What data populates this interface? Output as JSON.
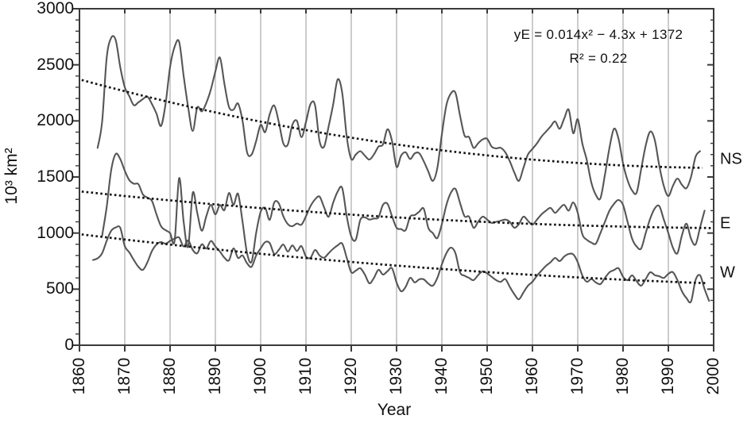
{
  "chart_data": {
    "type": "line",
    "title": "",
    "xlabel": "Year",
    "ylabel": "10³ km²",
    "xlim": [
      1860,
      2000
    ],
    "ylim": [
      0,
      3000
    ],
    "grid": "vertical-decade-gridlines",
    "x_ticks": [
      1860,
      1870,
      1880,
      1890,
      1900,
      1910,
      1920,
      1930,
      1940,
      1950,
      1960,
      1970,
      1980,
      1990,
      2000
    ],
    "y_ticks": [
      0,
      500,
      1000,
      1500,
      2000,
      2500,
      3000
    ],
    "y_minor_step": 100,
    "annotation": {
      "line1": "yE = 0.014x² − 4.3x + 1372",
      "line2": "R² = 0.22"
    },
    "colors": {
      "curve": "#4d4d4d",
      "trend": "#141414",
      "gridline": "#a3a3a3",
      "axis": "#3a3a3a",
      "text": "#111111"
    },
    "series": [
      {
        "name": "NS",
        "start_year": 1864,
        "values": [
          1760,
          1990,
          2560,
          2740,
          2720,
          2480,
          2300,
          2220,
          2140,
          2165,
          2195,
          2215,
          2150,
          2065,
          1955,
          2150,
          2480,
          2660,
          2705,
          2400,
          2120,
          1910,
          2120,
          2085,
          2160,
          2280,
          2440,
          2565,
          2330,
          2125,
          2100,
          2155,
          2000,
          1720,
          1700,
          1820,
          1965,
          1900,
          2060,
          2137,
          1990,
          1800,
          1790,
          1965,
          2000,
          1855,
          1990,
          2150,
          2140,
          1820,
          1770,
          1950,
          2145,
          2370,
          2250,
          1860,
          1660,
          1700,
          1730,
          1690,
          1655,
          1700,
          1770,
          1790,
          1925,
          1820,
          1590,
          1690,
          1720,
          1660,
          1710,
          1712,
          1640,
          1550,
          1465,
          1580,
          1880,
          2140,
          2245,
          2250,
          2050,
          1870,
          1855,
          1760,
          1800,
          1835,
          1840,
          1770,
          1755,
          1760,
          1720,
          1640,
          1540,
          1465,
          1580,
          1700,
          1750,
          1800,
          1860,
          1905,
          1950,
          1995,
          1930,
          2020,
          2100,
          1890,
          2015,
          1800,
          1650,
          1450,
          1340,
          1310,
          1520,
          1760,
          1930,
          1840,
          1620,
          1470,
          1380,
          1360,
          1570,
          1780,
          1905,
          1830,
          1600,
          1420,
          1330,
          1420,
          1486,
          1430,
          1400,
          1500,
          1680,
          1730
        ]
      },
      {
        "name": "E",
        "start_year": 1865,
        "values": [
          975,
          1230,
          1560,
          1705,
          1660,
          1556,
          1472,
          1440,
          1436,
          1344,
          1315,
          1287,
          1167,
          1061,
          1026,
          1000,
          930,
          1490,
          1100,
          880,
          1358,
          1180,
          1020,
          1150,
          1252,
          1167,
          1250,
          1205,
          1358,
          1252,
          1350,
          1100,
          820,
          745,
          1000,
          1190,
          1224,
          1118,
          1273,
          1265,
          1150,
          1080,
          1061,
          1085,
          1075,
          1150,
          1240,
          1300,
          1325,
          1230,
          1145,
          1270,
          1370,
          1401,
          1150,
          969,
          941,
          1118,
          1140,
          1120,
          1130,
          1140,
          1252,
          1260,
          1150,
          1047,
          1035,
          1026,
          1146,
          1160,
          1190,
          1217,
          1047,
          1000,
          955,
          1080,
          1250,
          1360,
          1394,
          1270,
          1150,
          1146,
          1047,
          1100,
          1146,
          1120,
          1090,
          1100,
          1110,
          1120,
          1100,
          1047,
          1080,
          1146,
          1110,
          1075,
          1120,
          1167,
          1200,
          1224,
          1180,
          1220,
          1252,
          1200,
          1273,
          1180,
          991,
          940,
          915,
          906,
          1000,
          1100,
          1200,
          1260,
          1295,
          1250,
          1100,
          950,
          880,
          863,
          1000,
          1130,
          1220,
          1240,
          1120,
          1000,
          870,
          820,
          980,
          1083,
          950,
          898,
          1050,
          1200
        ]
      },
      {
        "name": "W",
        "start_year": 1863,
        "values": [
          760,
          775,
          820,
          930,
          1020,
          1050,
          1047,
          884,
          828,
          760,
          700,
          672,
          740,
          840,
          898,
          920,
          905,
          930,
          950,
          960,
          880,
          935,
          850,
          820,
          900,
          862,
          930,
          880,
          835,
          780,
          757,
          863,
          778,
          800,
          730,
          700,
          800,
          863,
          920,
          910,
          814,
          850,
          898,
          835,
          890,
          840,
          884,
          790,
          780,
          849,
          800,
          780,
          820,
          860,
          890,
          906,
          780,
          651,
          665,
          686,
          630,
          552,
          600,
          672,
          630,
          660,
          686,
          560,
          481,
          520,
          601,
          560,
          587,
          587,
          550,
          531,
          600,
          720,
          820,
          870,
          820,
          651,
          620,
          600,
          580,
          625,
          658,
          640,
          610,
          580,
          565,
          590,
          520,
          455,
          410,
          470,
          530,
          566,
          620,
          665,
          708,
          740,
          778,
          750,
          790,
          814,
          810,
          740,
          623,
          566,
          590,
          560,
          545,
          600,
          650,
          670,
          686,
          610,
          580,
          623,
          570,
          531,
          590,
          651,
          625,
          615,
          600,
          637,
          651,
          580,
          481,
          420,
          389,
          580,
          623,
          500,
          395
        ]
      }
    ],
    "trend_lines": [
      {
        "name": "NS-trend",
        "poly_x_origin": 1860,
        "a": 0.0378,
        "b": -10.93,
        "c": 2370,
        "year_start": 1860.5,
        "year_end": 1997.5
      },
      {
        "name": "E-trend",
        "poly_x_origin": 1860,
        "a": 0.014,
        "b": -4.3,
        "c": 1372,
        "year_start": 1860.5,
        "year_end": 1999.5
      },
      {
        "name": "W-trend",
        "poly_x_origin": 1860,
        "a": 0.0124,
        "b": -4.87,
        "c": 990,
        "year_start": 1860.5,
        "year_end": 1998.5
      }
    ],
    "legend_position": "right-outside"
  }
}
